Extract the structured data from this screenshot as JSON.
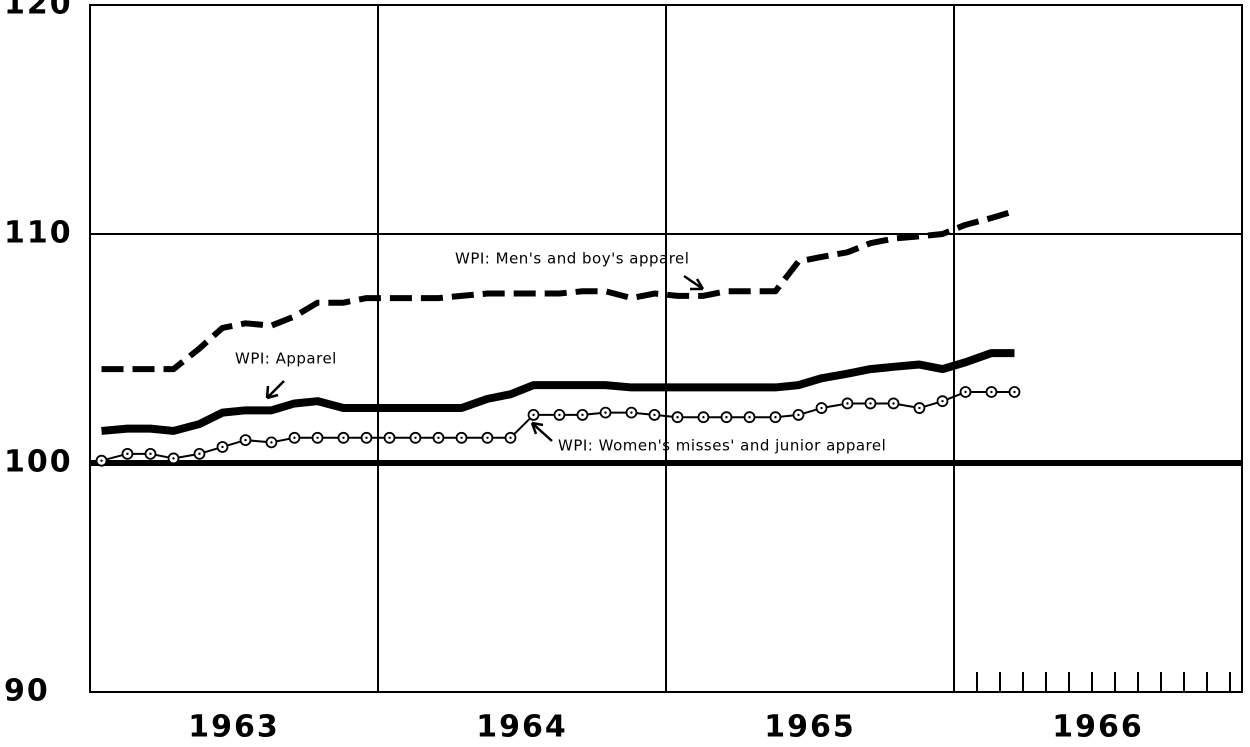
{
  "chart_data": {
    "type": "line",
    "x": [
      1963.04,
      1963.13,
      1963.21,
      1963.29,
      1963.38,
      1963.46,
      1963.54,
      1963.63,
      1963.71,
      1963.79,
      1963.88,
      1963.96,
      1964.04,
      1964.13,
      1964.21,
      1964.29,
      1964.38,
      1964.46,
      1964.54,
      1964.63,
      1964.71,
      1964.79,
      1964.88,
      1964.96,
      1965.04,
      1965.13,
      1965.21,
      1965.29,
      1965.38,
      1965.46,
      1965.54,
      1965.63,
      1965.71,
      1965.79,
      1965.88,
      1965.96,
      1966.04,
      1966.13,
      1966.21
    ],
    "series": [
      {
        "name": "WPI: Men's and boy's apparel",
        "color": "#000",
        "style": "dashed",
        "values": [
          104.1,
          104.1,
          104.1,
          104.1,
          105.0,
          105.9,
          106.1,
          106.0,
          106.4,
          107.0,
          107.0,
          107.2,
          107.2,
          107.2,
          107.2,
          107.3,
          107.4,
          107.4,
          107.4,
          107.4,
          107.5,
          107.5,
          107.2,
          107.4,
          107.3,
          107.3,
          107.5,
          107.5,
          107.5,
          108.8,
          109.0,
          109.2,
          109.6,
          109.8,
          109.9,
          110.0,
          110.4,
          110.7,
          111.0
        ]
      },
      {
        "name": "WPI: Apparel",
        "color": "#000",
        "style": "thick",
        "values": [
          101.4,
          101.5,
          101.5,
          101.4,
          101.7,
          102.2,
          102.3,
          102.3,
          102.6,
          102.7,
          102.4,
          102.4,
          102.4,
          102.4,
          102.4,
          102.4,
          102.8,
          103.0,
          103.4,
          103.4,
          103.4,
          103.4,
          103.3,
          103.3,
          103.3,
          103.3,
          103.3,
          103.3,
          103.3,
          103.4,
          103.7,
          103.9,
          104.1,
          104.2,
          104.3,
          104.1,
          104.4,
          104.8,
          104.8
        ]
      },
      {
        "name": "WPI: Women's misses' and junior apparel",
        "color": "#000",
        "style": "markers",
        "values": [
          100.1,
          100.4,
          100.4,
          100.2,
          100.4,
          100.7,
          101.0,
          100.9,
          101.1,
          101.1,
          101.1,
          101.1,
          101.1,
          101.1,
          101.1,
          101.1,
          101.1,
          101.1,
          102.1,
          102.1,
          102.1,
          102.2,
          102.2,
          102.1,
          102.0,
          102.0,
          102.0,
          102.0,
          102.0,
          102.1,
          102.4,
          102.6,
          102.6,
          102.6,
          102.4,
          102.7,
          103.1,
          103.1,
          103.1
        ]
      }
    ],
    "xlim": [
      1963,
      1967
    ],
    "xticks": [
      {
        "value": 1963.5,
        "label": "1963"
      },
      {
        "value": 1964.5,
        "label": "1964"
      },
      {
        "value": 1965.5,
        "label": "1965"
      },
      {
        "value": 1966.5,
        "label": "1966"
      }
    ],
    "xgrid": [
      1964,
      1965,
      1966
    ],
    "ylim": [
      90,
      120
    ],
    "yticks": [
      90,
      100,
      110,
      120
    ],
    "reference_line": 100,
    "grid": true
  }
}
